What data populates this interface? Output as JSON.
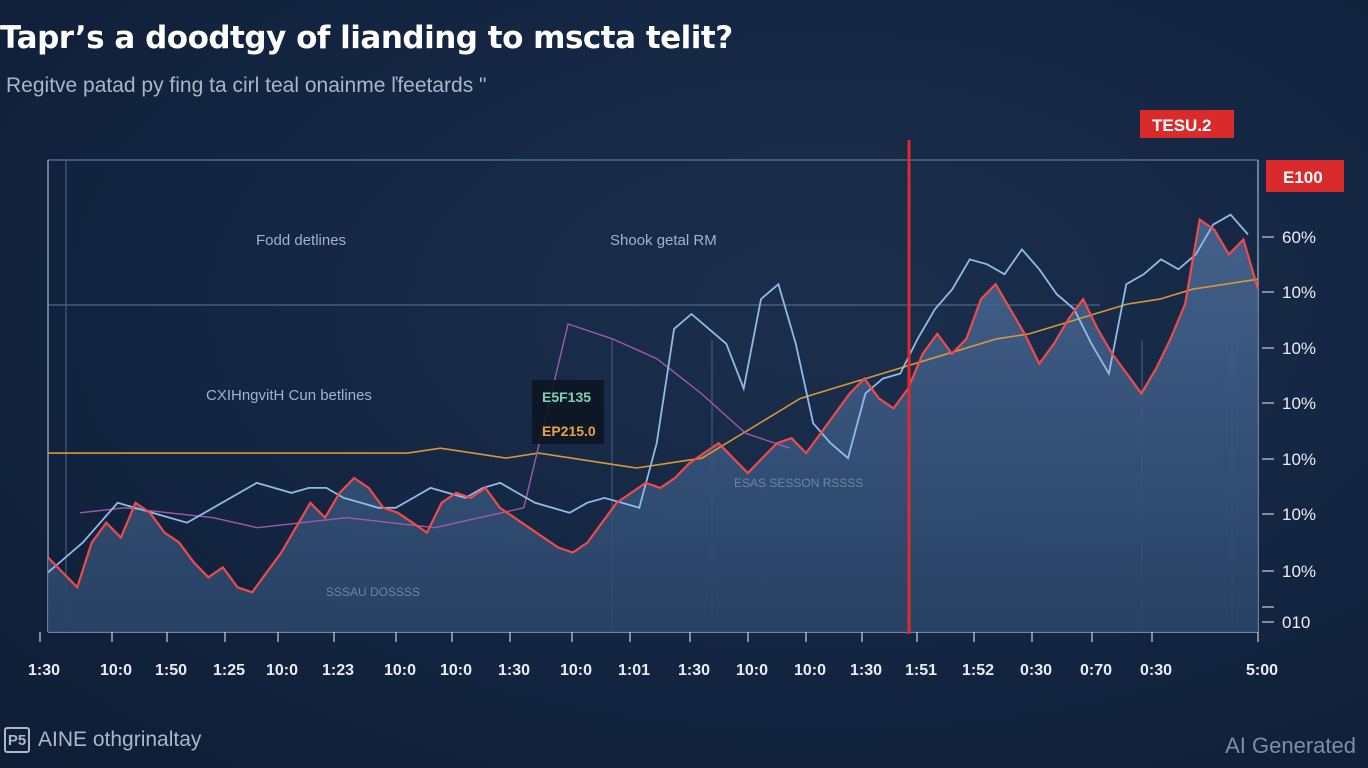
{
  "title": "Tapr’s a doodtgy of lianding to mscta telit?",
  "subtitle": "Regitve patad py fing ta cirl teal onainme ľfeetards \"",
  "footer": {
    "logo_icon": "P5",
    "brand": "AINE othgrinaltay"
  },
  "watermark": "AI Generated",
  "colors": {
    "background": "#132541",
    "red_series": "#ef4b4b",
    "blue_series": "#8fbbe6",
    "orange_series": "#d8963a",
    "purple_series": "#a05aa8",
    "area_fill": "#3e5b84",
    "callout_red": "#d92b2b"
  },
  "chart_data": {
    "type": "line",
    "y_tick_labels": [
      "E100",
      "60%",
      "10%",
      "10%",
      "10%",
      "10%",
      "10%",
      "10%",
      "010"
    ],
    "x_tick_labels": [
      "1:30",
      "10:0",
      "1:50",
      "1:25",
      "10:0",
      "1:23",
      "10:0",
      "10:0",
      "1:30",
      "10:0",
      "1:01",
      "1:30",
      "10:0",
      "10:0",
      "1:30",
      "1:51",
      "1:52",
      "0:30",
      "0:70",
      "0:30",
      "5:00"
    ],
    "annotations": {
      "region_left": "Fodd detlines",
      "region_mid": "Shook getal RM",
      "region_lower": "CXIHngvitH Cun betlines",
      "faint_label_a": "ESAS SESSON RSSSS",
      "faint_label_b": "SSSAU DOSSSS",
      "callout_top": "TESU.2",
      "callout_right": "E100",
      "box_green": "E5F135",
      "box_orange": "EP215.0"
    },
    "series": [
      {
        "name": "",
        "color": "red",
        "values": [
          1.5,
          1.2,
          0.9,
          1.8,
          2.2,
          1.9,
          2.6,
          2.4,
          2.0,
          1.8,
          1.4,
          1.1,
          1.3,
          0.9,
          0.8,
          1.2,
          1.6,
          2.1,
          2.6,
          2.3,
          2.8,
          3.1,
          2.9,
          2.5,
          2.4,
          2.2,
          2.0,
          2.6,
          2.8,
          2.7,
          2.9,
          2.5,
          2.3,
          2.1,
          1.9,
          1.7,
          1.6,
          1.8,
          2.2,
          2.6,
          2.8,
          3.0,
          2.9,
          3.1,
          3.4,
          3.6,
          3.8,
          3.5,
          3.2,
          3.5,
          3.8,
          3.9,
          3.6,
          4.0,
          4.4,
          4.8,
          5.1,
          4.7,
          4.5,
          4.9,
          5.6,
          6.0,
          5.6,
          5.9,
          6.7,
          7.0,
          6.5,
          6.0,
          5.4,
          5.8,
          6.3,
          6.7,
          6.1,
          5.6,
          5.2,
          4.8,
          5.3,
          5.9,
          6.6,
          8.3,
          8.1,
          7.6,
          7.9,
          6.9
        ]
      },
      {
        "name": "",
        "color": "blue",
        "values": [
          1.2,
          1.5,
          1.8,
          2.2,
          2.6,
          2.5,
          2.4,
          2.3,
          2.2,
          2.4,
          2.6,
          2.8,
          3.0,
          2.9,
          2.8,
          2.9,
          2.9,
          2.7,
          2.6,
          2.5,
          2.5,
          2.7,
          2.9,
          2.8,
          2.7,
          2.9,
          3.0,
          2.8,
          2.6,
          2.5,
          2.4,
          2.6,
          2.7,
          2.6,
          2.5,
          3.8,
          6.1,
          6.4,
          6.1,
          5.8,
          4.9,
          6.7,
          7.0,
          5.8,
          4.2,
          3.8,
          3.5,
          4.8,
          5.1,
          5.2,
          5.9,
          6.5,
          6.9,
          7.5,
          7.4,
          7.2,
          7.7,
          7.3,
          6.8,
          6.5,
          5.8,
          5.2,
          7.0,
          7.2,
          7.5,
          7.3,
          7.6,
          8.2,
          8.4,
          8.0
        ]
      },
      {
        "name": "",
        "color": "orange",
        "values": [
          3.6,
          3.6,
          3.6,
          3.6,
          3.6,
          3.6,
          3.6,
          3.6,
          3.6,
          3.6,
          3.6,
          3.6,
          3.7,
          3.6,
          3.5,
          3.6,
          3.5,
          3.4,
          3.3,
          3.4,
          3.5,
          3.9,
          4.3,
          4.7,
          4.9,
          5.1,
          5.3,
          5.5,
          5.7,
          5.9,
          6.0,
          6.2,
          6.4,
          6.6,
          6.7,
          6.9,
          7.0,
          7.1
        ]
      },
      {
        "name": "",
        "color": "purple",
        "values": [
          2.4,
          2.5,
          2.4,
          2.3,
          2.1,
          2.2,
          2.3,
          2.2,
          2.1,
          2.3,
          2.5,
          6.2,
          5.9,
          5.5,
          4.8,
          4.0,
          3.7
        ]
      }
    ]
  }
}
